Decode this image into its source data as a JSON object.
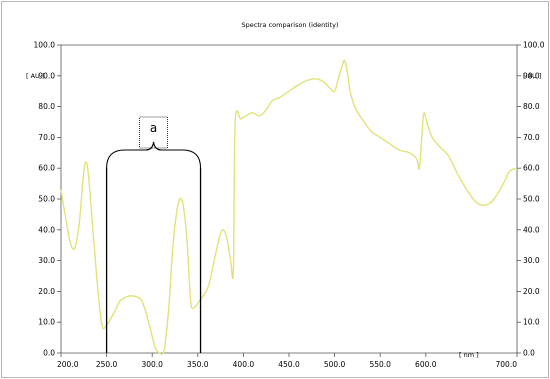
{
  "chart_data": {
    "type": "line",
    "title": "Spectra comparison (identity)",
    "xunit": "[ nm ]",
    "yunit_left": "[ AU ]",
    "yunit_right": "[ AU ]",
    "xlim": [
      200,
      700
    ],
    "ylim": [
      0,
      100
    ],
    "x_ticks": [
      {
        "value": 200,
        "label": "200.0"
      },
      {
        "value": 250,
        "label": "250.0"
      },
      {
        "value": 300,
        "label": "300.0"
      },
      {
        "value": 350,
        "label": "350.0"
      },
      {
        "value": 400,
        "label": "400.0"
      },
      {
        "value": 450,
        "label": "450.0"
      },
      {
        "value": 500,
        "label": "500.0"
      },
      {
        "value": 550,
        "label": "550.0"
      },
      {
        "value": 600,
        "label": "600.0"
      },
      {
        "value": 700,
        "label": "700.0"
      }
    ],
    "y_ticks": [
      {
        "value": 0,
        "label": "0.0"
      },
      {
        "value": 10,
        "label": "10.0"
      },
      {
        "value": 20,
        "label": "20.0"
      },
      {
        "value": 30,
        "label": "30.0"
      },
      {
        "value": 40,
        "label": "40.0"
      },
      {
        "value": 50,
        "label": "50.0"
      },
      {
        "value": 60,
        "label": "60.0"
      },
      {
        "value": 70,
        "label": "70.0"
      },
      {
        "value": 80,
        "label": "80.0"
      },
      {
        "value": 90,
        "label": "90.0"
      },
      {
        "value": 100,
        "label": "100.0"
      }
    ],
    "grid": false,
    "series": [
      {
        "color": "#e2e27a",
        "points": [
          [
            200,
            53
          ],
          [
            205,
            44
          ],
          [
            210,
            36
          ],
          [
            215,
            34
          ],
          [
            220,
            42
          ],
          [
            224,
            56
          ],
          [
            227,
            62
          ],
          [
            230,
            58
          ],
          [
            235,
            40
          ],
          [
            240,
            22
          ],
          [
            245,
            9
          ],
          [
            250,
            9
          ],
          [
            258,
            13
          ],
          [
            265,
            17
          ],
          [
            275,
            18.5
          ],
          [
            285,
            18
          ],
          [
            290,
            16
          ],
          [
            297,
            9
          ],
          [
            303,
            2
          ],
          [
            308,
            0
          ],
          [
            313,
            1
          ],
          [
            318,
            14
          ],
          [
            322,
            32
          ],
          [
            326,
            44
          ],
          [
            330,
            50
          ],
          [
            334,
            48
          ],
          [
            338,
            37
          ],
          [
            341,
            22
          ],
          [
            343,
            15
          ],
          [
            347,
            15
          ],
          [
            352,
            17
          ],
          [
            357,
            19
          ],
          [
            362,
            22
          ],
          [
            368,
            30
          ],
          [
            374,
            38
          ],
          [
            378,
            40
          ],
          [
            382,
            37
          ],
          [
            386,
            30
          ],
          [
            389,
            27
          ],
          [
            391,
            75
          ],
          [
            397,
            76
          ],
          [
            403,
            77
          ],
          [
            410,
            78
          ],
          [
            418,
            77
          ],
          [
            425,
            79
          ],
          [
            432,
            82
          ],
          [
            440,
            83
          ],
          [
            450,
            85
          ],
          [
            460,
            87
          ],
          [
            470,
            88.5
          ],
          [
            480,
            89
          ],
          [
            488,
            88
          ],
          [
            495,
            86
          ],
          [
            500,
            85
          ],
          [
            504,
            89
          ],
          [
            508,
            93
          ],
          [
            511,
            95
          ],
          [
            514,
            91
          ],
          [
            517,
            85
          ],
          [
            522,
            80
          ],
          [
            530,
            76
          ],
          [
            540,
            72
          ],
          [
            550,
            70
          ],
          [
            560,
            68
          ],
          [
            570,
            66
          ],
          [
            582,
            65
          ],
          [
            590,
            63
          ],
          [
            593,
            60
          ],
          [
            596,
            72
          ],
          [
            598,
            78
          ],
          [
            602,
            74
          ],
          [
            607,
            70
          ],
          [
            615,
            67
          ],
          [
            625,
            64
          ],
          [
            635,
            58
          ],
          [
            645,
            53
          ],
          [
            655,
            49
          ],
          [
            665,
            48
          ],
          [
            675,
            50
          ],
          [
            685,
            55
          ],
          [
            692,
            59
          ],
          [
            700,
            60
          ]
        ]
      }
    ],
    "annotations": [
      {
        "text": "a",
        "x_from": 250,
        "x_to": 353,
        "kind": "brace-bracket",
        "y": 60
      }
    ]
  }
}
